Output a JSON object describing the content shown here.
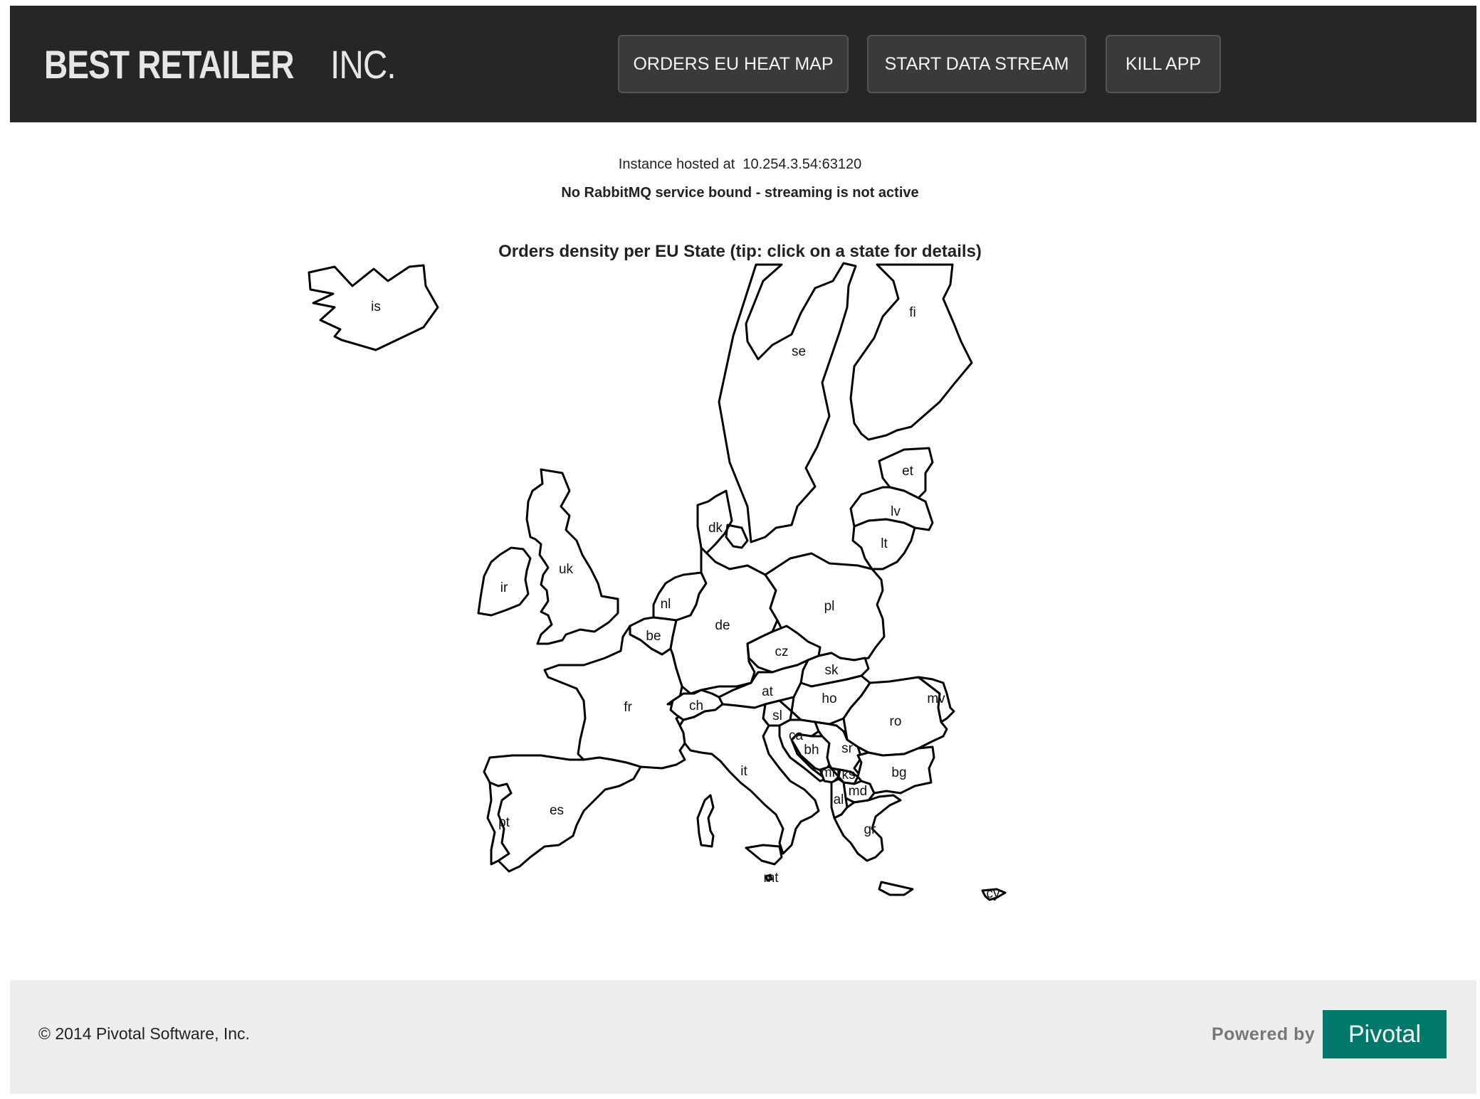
{
  "header": {
    "logo_bold": "BEST RETAILER",
    "logo_light": "INC.",
    "buttons": {
      "heatmap": "ORDERS EU HEAT MAP",
      "stream": "START DATA STREAM",
      "kill": "KILL APP"
    }
  },
  "info": {
    "instance_label": "Instance hosted at",
    "instance_address": "10.254.3.54:63120",
    "rabbit_status": "No RabbitMQ service bound - streaming is not active"
  },
  "map": {
    "title": "Orders density per EU State (tip: click on a state for details)",
    "states": [
      "is",
      "se",
      "fi",
      "et",
      "lv",
      "lt",
      "dk",
      "uk",
      "ir",
      "nl",
      "be",
      "de",
      "pl",
      "cz",
      "sk",
      "at",
      "ho",
      "ro",
      "mv",
      "fr",
      "ch",
      "sl",
      "ca",
      "bh",
      "sr",
      "mn",
      "ks",
      "md",
      "al",
      "bg",
      "gr",
      "it",
      "es",
      "pt",
      "mt",
      "cy"
    ]
  },
  "footer": {
    "copyright": "© 2014 Pivotal Software, Inc.",
    "powered_by": "Powered by",
    "brand": "Pivotal"
  },
  "colors": {
    "header_bg": "#262626",
    "footer_bg": "#eeeeee",
    "brand_green": "#00796b",
    "state_fill": "#ffffff",
    "state_stroke": "#000000"
  }
}
